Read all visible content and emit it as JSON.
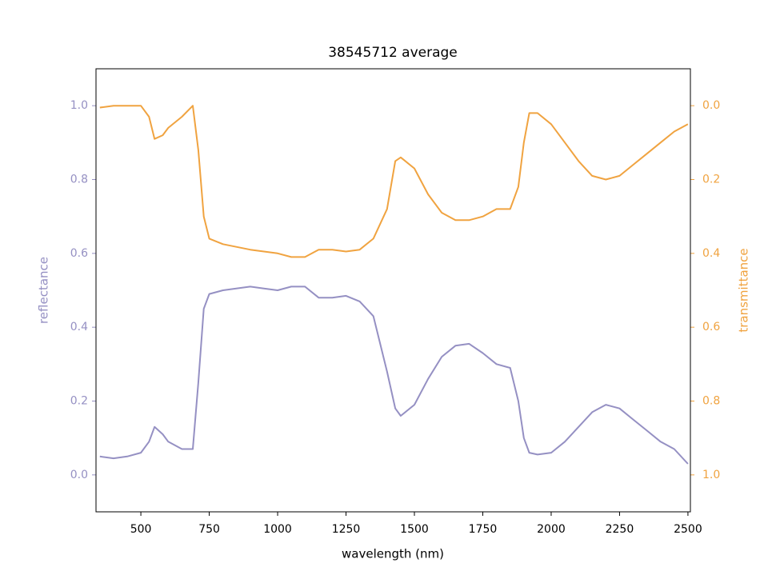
{
  "chart_data": {
    "type": "line",
    "title": "38545712 average",
    "x_label": "wavelength (nm)",
    "y_label": "reflectance",
    "y2_label": "transmittance",
    "x": [
      350,
      400,
      450,
      500,
      530,
      550,
      580,
      600,
      650,
      690,
      710,
      730,
      750,
      800,
      900,
      950,
      1000,
      1050,
      1100,
      1150,
      1200,
      1250,
      1300,
      1350,
      1400,
      1430,
      1450,
      1500,
      1550,
      1600,
      1650,
      1700,
      1750,
      1800,
      1850,
      1880,
      1900,
      1920,
      1950,
      2000,
      2050,
      2100,
      2150,
      2200,
      2250,
      2300,
      2350,
      2400,
      2450,
      2500
    ],
    "series": [
      {
        "name": "reflectance",
        "color": "#9590c3",
        "values": [
          0.05,
          0.045,
          0.05,
          0.06,
          0.09,
          0.13,
          0.11,
          0.09,
          0.07,
          0.07,
          0.25,
          0.45,
          0.49,
          0.5,
          0.51,
          0.505,
          0.5,
          0.51,
          0.51,
          0.48,
          0.48,
          0.485,
          0.47,
          0.43,
          0.28,
          0.18,
          0.16,
          0.19,
          0.26,
          0.32,
          0.35,
          0.355,
          0.33,
          0.3,
          0.29,
          0.2,
          0.1,
          0.06,
          0.055,
          0.06,
          0.09,
          0.13,
          0.17,
          0.19,
          0.18,
          0.15,
          0.12,
          0.09,
          0.07,
          0.03
        ]
      },
      {
        "name": "transmittance",
        "color": "#f0a340",
        "axis": "y2",
        "values": [
          0.005,
          0,
          0,
          0,
          0.03,
          0.09,
          0.08,
          0.06,
          0.03,
          0,
          0.12,
          0.3,
          0.36,
          0.375,
          0.39,
          0.395,
          0.4,
          0.41,
          0.41,
          0.39,
          0.39,
          0.395,
          0.39,
          0.36,
          0.28,
          0.15,
          0.14,
          0.17,
          0.24,
          0.29,
          0.31,
          0.31,
          0.3,
          0.28,
          0.28,
          0.22,
          0.1,
          0.02,
          0.02,
          0.05,
          0.1,
          0.15,
          0.19,
          0.2,
          0.19,
          0.16,
          0.13,
          0.1,
          0.07,
          0.05
        ]
      }
    ],
    "xlim": [
      336,
      2509
    ],
    "xticks": [
      500,
      750,
      1000,
      1250,
      1500,
      1750,
      2000,
      2250,
      2500
    ],
    "ylim": [
      -0.1,
      1.1
    ],
    "yticks": [
      {
        "value": 0,
        "label": "0.0"
      },
      0.2,
      0.4,
      0.6,
      0.8,
      {
        "value": 1,
        "label": "1.0"
      }
    ],
    "y2lim": [
      -0.1,
      1.1
    ],
    "y2_inverted": true,
    "y2ticks": [
      {
        "value": 0,
        "label": "0.0"
      },
      0.2,
      0.4,
      0.6,
      0.8,
      {
        "value": 1,
        "label": "1.0"
      }
    ]
  }
}
